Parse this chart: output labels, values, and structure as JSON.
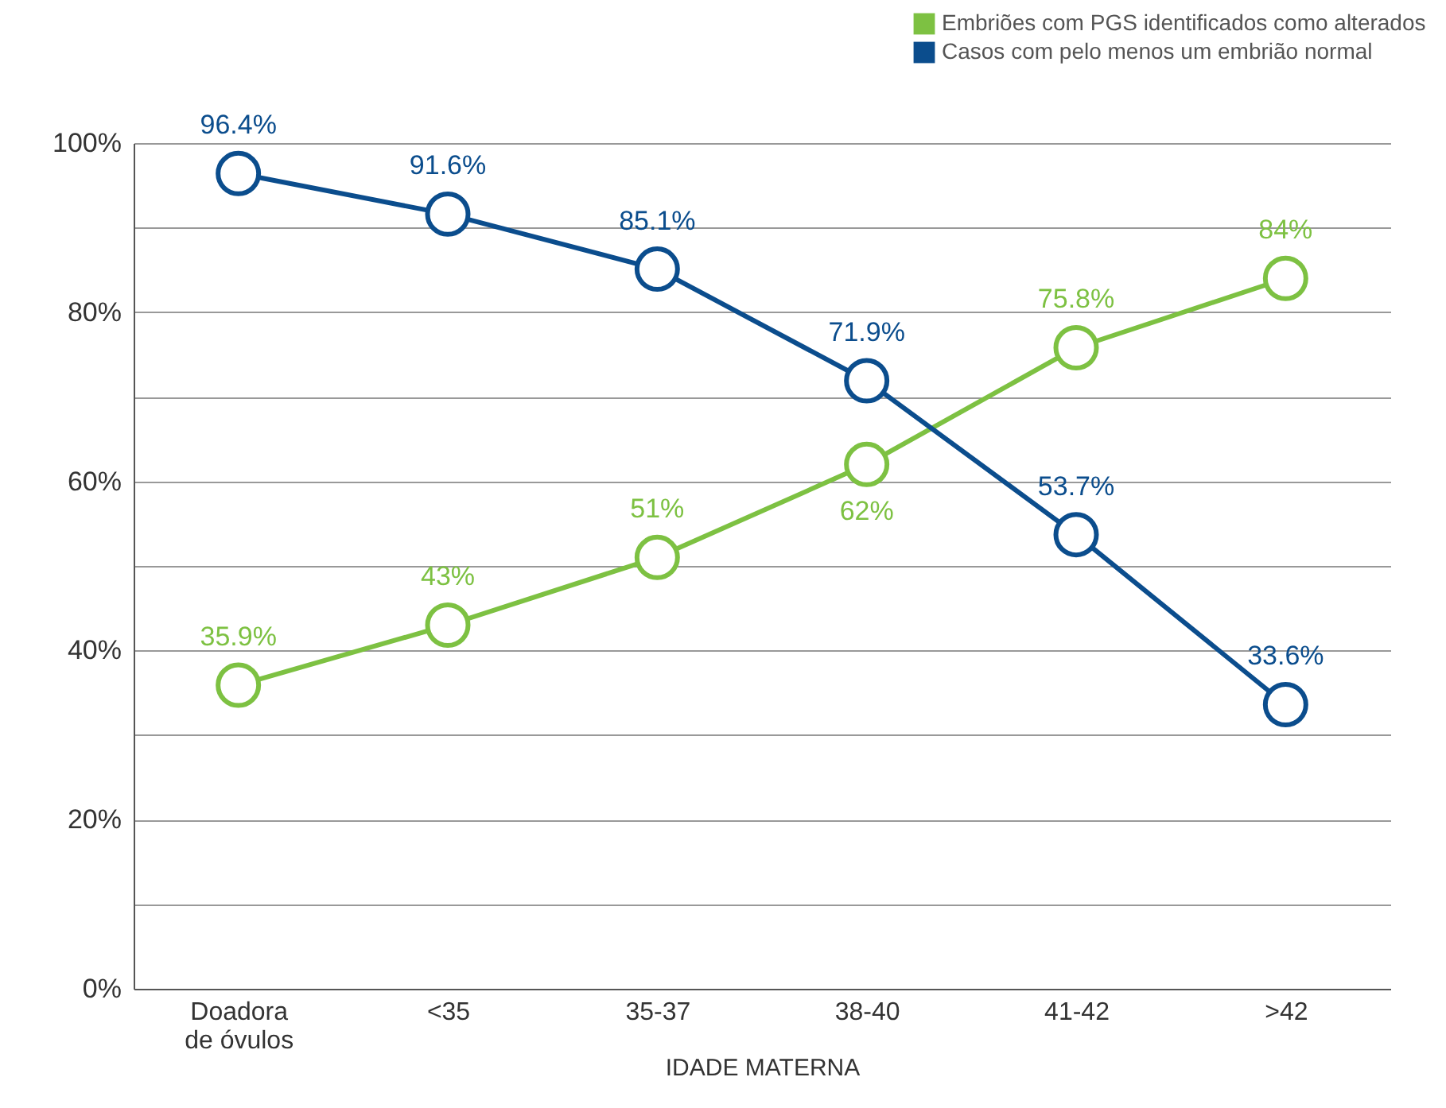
{
  "chart_data": {
    "type": "line",
    "xlabel": "IDADE MATERNA",
    "categories": [
      "Doadora de óvulos",
      "<35",
      "35-37",
      "38-40",
      "41-42",
      ">42"
    ],
    "series": [
      {
        "name": "Embriões com PGS identificados como alterados",
        "color": "#7dc142",
        "values": [
          35.9,
          43,
          51,
          62,
          75.8,
          84
        ],
        "value_labels": [
          "35.9%",
          "43%",
          "51%",
          "62%",
          "75.8%",
          "84%"
        ]
      },
      {
        "name": "Casos com pelo menos um embrião normal",
        "color": "#0b4d8d",
        "values": [
          96.4,
          91.6,
          85.1,
          71.9,
          53.7,
          33.6
        ],
        "value_labels": [
          "96.4%",
          "91.6%",
          "85.1%",
          "71.9%",
          "53.7%",
          "33.6%"
        ]
      }
    ],
    "ylim": [
      0,
      100
    ],
    "yticks": [
      {
        "value": 0,
        "label": "0%"
      },
      {
        "value": 10,
        "label": null
      },
      {
        "value": 20,
        "label": "20%"
      },
      {
        "value": 30,
        "label": null
      },
      {
        "value": 40,
        "label": "40%"
      },
      {
        "value": 50,
        "label": null
      },
      {
        "value": 60,
        "label": "60%"
      },
      {
        "value": 70,
        "label": null
      },
      {
        "value": 80,
        "label": "80%"
      },
      {
        "value": 90,
        "label": null
      },
      {
        "value": 100,
        "label": "100%"
      }
    ],
    "grid": "y",
    "legend": "top right",
    "marker": "circle",
    "line_style": "solid"
  }
}
